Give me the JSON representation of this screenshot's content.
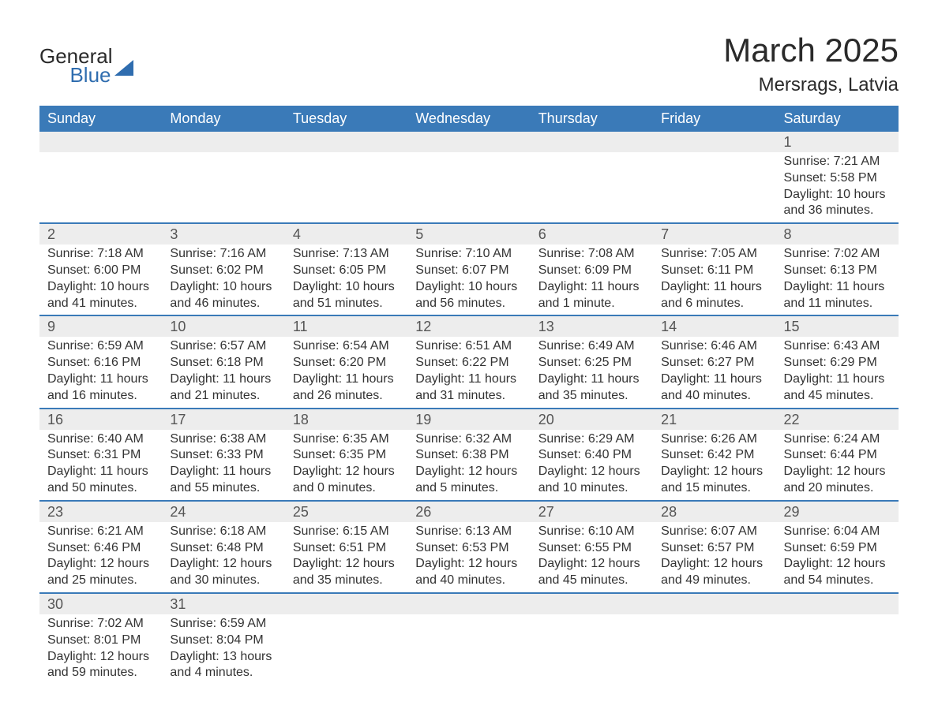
{
  "logo": {
    "text_general": "General",
    "text_blue": "Blue"
  },
  "header": {
    "month_year": "March 2025",
    "location": "Mersrags, Latvia"
  },
  "weekdays": [
    "Sunday",
    "Monday",
    "Tuesday",
    "Wednesday",
    "Thursday",
    "Friday",
    "Saturday"
  ],
  "colors": {
    "header_bg": "#3a7ab8",
    "header_text": "#ffffff",
    "daynum_bg": "#ededed",
    "daynum_text": "#555555",
    "body_text": "#333333",
    "border": "#3a7ab8",
    "logo_blue": "#2f6daf"
  },
  "typography": {
    "title_fontsize": 42,
    "location_fontsize": 24,
    "header_fontsize": 18,
    "daynum_fontsize": 18,
    "content_fontsize": 16
  },
  "weeks": [
    [
      null,
      null,
      null,
      null,
      null,
      null,
      {
        "day": "1",
        "sunrise": "Sunrise: 7:21 AM",
        "sunset": "Sunset: 5:58 PM",
        "daylight1": "Daylight: 10 hours",
        "daylight2": "and 36 minutes."
      }
    ],
    [
      {
        "day": "2",
        "sunrise": "Sunrise: 7:18 AM",
        "sunset": "Sunset: 6:00 PM",
        "daylight1": "Daylight: 10 hours",
        "daylight2": "and 41 minutes."
      },
      {
        "day": "3",
        "sunrise": "Sunrise: 7:16 AM",
        "sunset": "Sunset: 6:02 PM",
        "daylight1": "Daylight: 10 hours",
        "daylight2": "and 46 minutes."
      },
      {
        "day": "4",
        "sunrise": "Sunrise: 7:13 AM",
        "sunset": "Sunset: 6:05 PM",
        "daylight1": "Daylight: 10 hours",
        "daylight2": "and 51 minutes."
      },
      {
        "day": "5",
        "sunrise": "Sunrise: 7:10 AM",
        "sunset": "Sunset: 6:07 PM",
        "daylight1": "Daylight: 10 hours",
        "daylight2": "and 56 minutes."
      },
      {
        "day": "6",
        "sunrise": "Sunrise: 7:08 AM",
        "sunset": "Sunset: 6:09 PM",
        "daylight1": "Daylight: 11 hours",
        "daylight2": "and 1 minute."
      },
      {
        "day": "7",
        "sunrise": "Sunrise: 7:05 AM",
        "sunset": "Sunset: 6:11 PM",
        "daylight1": "Daylight: 11 hours",
        "daylight2": "and 6 minutes."
      },
      {
        "day": "8",
        "sunrise": "Sunrise: 7:02 AM",
        "sunset": "Sunset: 6:13 PM",
        "daylight1": "Daylight: 11 hours",
        "daylight2": "and 11 minutes."
      }
    ],
    [
      {
        "day": "9",
        "sunrise": "Sunrise: 6:59 AM",
        "sunset": "Sunset: 6:16 PM",
        "daylight1": "Daylight: 11 hours",
        "daylight2": "and 16 minutes."
      },
      {
        "day": "10",
        "sunrise": "Sunrise: 6:57 AM",
        "sunset": "Sunset: 6:18 PM",
        "daylight1": "Daylight: 11 hours",
        "daylight2": "and 21 minutes."
      },
      {
        "day": "11",
        "sunrise": "Sunrise: 6:54 AM",
        "sunset": "Sunset: 6:20 PM",
        "daylight1": "Daylight: 11 hours",
        "daylight2": "and 26 minutes."
      },
      {
        "day": "12",
        "sunrise": "Sunrise: 6:51 AM",
        "sunset": "Sunset: 6:22 PM",
        "daylight1": "Daylight: 11 hours",
        "daylight2": "and 31 minutes."
      },
      {
        "day": "13",
        "sunrise": "Sunrise: 6:49 AM",
        "sunset": "Sunset: 6:25 PM",
        "daylight1": "Daylight: 11 hours",
        "daylight2": "and 35 minutes."
      },
      {
        "day": "14",
        "sunrise": "Sunrise: 6:46 AM",
        "sunset": "Sunset: 6:27 PM",
        "daylight1": "Daylight: 11 hours",
        "daylight2": "and 40 minutes."
      },
      {
        "day": "15",
        "sunrise": "Sunrise: 6:43 AM",
        "sunset": "Sunset: 6:29 PM",
        "daylight1": "Daylight: 11 hours",
        "daylight2": "and 45 minutes."
      }
    ],
    [
      {
        "day": "16",
        "sunrise": "Sunrise: 6:40 AM",
        "sunset": "Sunset: 6:31 PM",
        "daylight1": "Daylight: 11 hours",
        "daylight2": "and 50 minutes."
      },
      {
        "day": "17",
        "sunrise": "Sunrise: 6:38 AM",
        "sunset": "Sunset: 6:33 PM",
        "daylight1": "Daylight: 11 hours",
        "daylight2": "and 55 minutes."
      },
      {
        "day": "18",
        "sunrise": "Sunrise: 6:35 AM",
        "sunset": "Sunset: 6:35 PM",
        "daylight1": "Daylight: 12 hours",
        "daylight2": "and 0 minutes."
      },
      {
        "day": "19",
        "sunrise": "Sunrise: 6:32 AM",
        "sunset": "Sunset: 6:38 PM",
        "daylight1": "Daylight: 12 hours",
        "daylight2": "and 5 minutes."
      },
      {
        "day": "20",
        "sunrise": "Sunrise: 6:29 AM",
        "sunset": "Sunset: 6:40 PM",
        "daylight1": "Daylight: 12 hours",
        "daylight2": "and 10 minutes."
      },
      {
        "day": "21",
        "sunrise": "Sunrise: 6:26 AM",
        "sunset": "Sunset: 6:42 PM",
        "daylight1": "Daylight: 12 hours",
        "daylight2": "and 15 minutes."
      },
      {
        "day": "22",
        "sunrise": "Sunrise: 6:24 AM",
        "sunset": "Sunset: 6:44 PM",
        "daylight1": "Daylight: 12 hours",
        "daylight2": "and 20 minutes."
      }
    ],
    [
      {
        "day": "23",
        "sunrise": "Sunrise: 6:21 AM",
        "sunset": "Sunset: 6:46 PM",
        "daylight1": "Daylight: 12 hours",
        "daylight2": "and 25 minutes."
      },
      {
        "day": "24",
        "sunrise": "Sunrise: 6:18 AM",
        "sunset": "Sunset: 6:48 PM",
        "daylight1": "Daylight: 12 hours",
        "daylight2": "and 30 minutes."
      },
      {
        "day": "25",
        "sunrise": "Sunrise: 6:15 AM",
        "sunset": "Sunset: 6:51 PM",
        "daylight1": "Daylight: 12 hours",
        "daylight2": "and 35 minutes."
      },
      {
        "day": "26",
        "sunrise": "Sunrise: 6:13 AM",
        "sunset": "Sunset: 6:53 PM",
        "daylight1": "Daylight: 12 hours",
        "daylight2": "and 40 minutes."
      },
      {
        "day": "27",
        "sunrise": "Sunrise: 6:10 AM",
        "sunset": "Sunset: 6:55 PM",
        "daylight1": "Daylight: 12 hours",
        "daylight2": "and 45 minutes."
      },
      {
        "day": "28",
        "sunrise": "Sunrise: 6:07 AM",
        "sunset": "Sunset: 6:57 PM",
        "daylight1": "Daylight: 12 hours",
        "daylight2": "and 49 minutes."
      },
      {
        "day": "29",
        "sunrise": "Sunrise: 6:04 AM",
        "sunset": "Sunset: 6:59 PM",
        "daylight1": "Daylight: 12 hours",
        "daylight2": "and 54 minutes."
      }
    ],
    [
      {
        "day": "30",
        "sunrise": "Sunrise: 7:02 AM",
        "sunset": "Sunset: 8:01 PM",
        "daylight1": "Daylight: 12 hours",
        "daylight2": "and 59 minutes."
      },
      {
        "day": "31",
        "sunrise": "Sunrise: 6:59 AM",
        "sunset": "Sunset: 8:04 PM",
        "daylight1": "Daylight: 13 hours",
        "daylight2": "and 4 minutes."
      },
      null,
      null,
      null,
      null,
      null
    ]
  ]
}
